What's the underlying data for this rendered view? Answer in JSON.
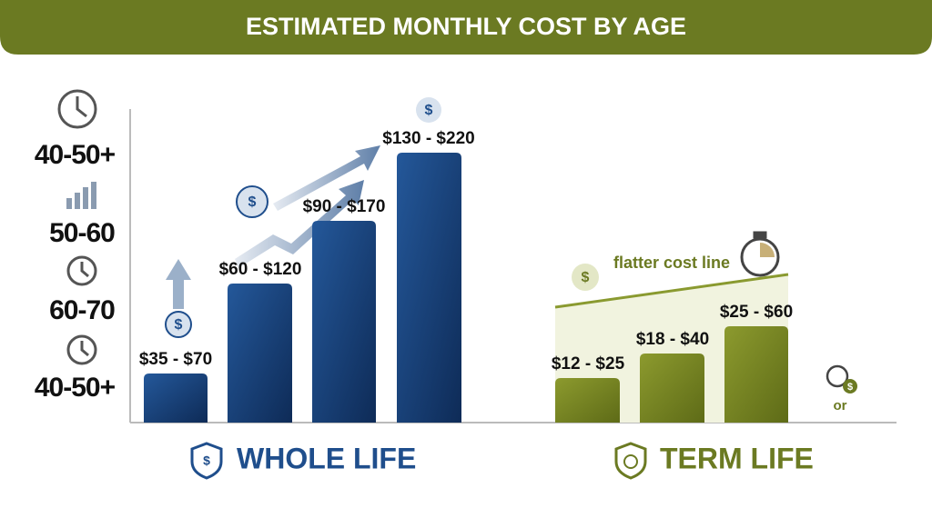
{
  "header": {
    "title": "ESTIMATED MONTHLY COST BY AGE"
  },
  "age_labels": [
    "40-50+",
    "50-60",
    "60-70",
    "40-50+"
  ],
  "whole_life": {
    "label": "WHOLE LIFE",
    "bars": [
      "$35 - $70",
      "$60 - $120",
      "$90 - $170",
      "$130 - $220"
    ]
  },
  "term_life": {
    "label": "TERM LIFE",
    "bars": [
      "$12 - $25",
      "$18 - $40",
      "$25 - $60"
    ],
    "annotation": "flatter cost line",
    "note": "or"
  },
  "icon_symbol": "$"
}
